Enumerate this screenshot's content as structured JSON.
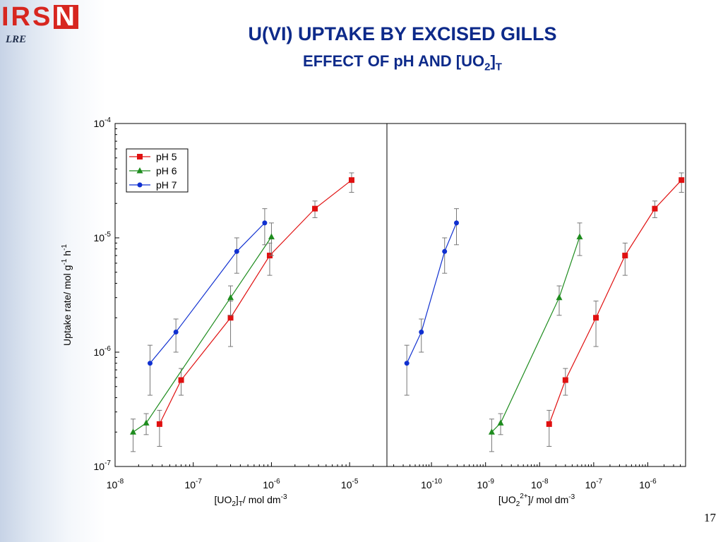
{
  "header": {
    "logo_text": "IRS",
    "logo_letter": "N",
    "sub_logo": "LRE",
    "title": "U(VI) UPTAKE BY EXCISED GILLS",
    "subtitle_main": "EFFECT OF pH AND [UO",
    "subtitle_sub1": "2",
    "subtitle_close": "]",
    "subtitle_sub2": "T"
  },
  "footer": {
    "page_number": "17"
  },
  "chart_data": [
    {
      "type": "scatter",
      "xscale": "log",
      "yscale": "log",
      "xlim": [
        1e-08,
        3e-05
      ],
      "ylim": [
        1e-07,
        0.0001
      ],
      "x_ticks": [
        1e-08,
        1e-07,
        1e-06,
        1e-05
      ],
      "x_tick_labels": [
        {
          "base": "10",
          "exp": "-8"
        },
        {
          "base": "10",
          "exp": "-7"
        },
        {
          "base": "10",
          "exp": "-6"
        },
        {
          "base": "10",
          "exp": "-5"
        }
      ],
      "y_ticks": [
        1e-07,
        1e-06,
        1e-05,
        0.0001
      ],
      "y_tick_labels": [
        {
          "base": "10",
          "exp": "-7"
        },
        {
          "base": "10",
          "exp": "-6"
        },
        {
          "base": "10",
          "exp": "-5"
        },
        {
          "base": "10",
          "exp": "-4"
        }
      ],
      "xlabel": {
        "t1": "[UO",
        "s1": "2",
        "t2": "]",
        "s2": "T",
        "t3": "/ mol dm",
        "e1": "-3"
      },
      "ylabel": {
        "t1": "Uptake rate/ mol g",
        "e1": "-1",
        "t2": " h",
        "e2": "-1"
      },
      "legend": {
        "position": "top-left",
        "entries": [
          "pH 5",
          "pH 6",
          "pH 7"
        ]
      },
      "series": [
        {
          "name": "pH 5",
          "color": "#e01010",
          "marker": "square",
          "x": [
            3.7e-08,
            7e-08,
            3e-07,
            9.5e-07,
            3.6e-06,
            1.06e-05
          ],
          "y": [
            2.35e-07,
            5.7e-07,
            2e-06,
            7e-06,
            1.8e-05,
            3.2e-05
          ],
          "y_low": [
            1.5e-07,
            4.2e-07,
            1.12e-06,
            4.7e-06,
            1.5e-05,
            2.5e-05
          ],
          "y_high": [
            3.1e-07,
            7.2e-07,
            2.8e-06,
            9e-06,
            2.1e-05,
            3.7e-05
          ]
        },
        {
          "name": "pH 6",
          "color": "#1e8c1e",
          "marker": "triangle",
          "x": [
            1.7e-08,
            2.5e-08,
            3e-07,
            1e-06
          ],
          "y": [
            2e-07,
            2.4e-07,
            3e-06,
            1.02e-05
          ],
          "y_low": [
            1.35e-07,
            1.9e-07,
            2.1e-06,
            7e-06
          ],
          "y_high": [
            2.6e-07,
            2.9e-07,
            3.8e-06,
            1.35e-05
          ],
          "error_bars": [
            true,
            true,
            true,
            true
          ]
        },
        {
          "name": "pH 7",
          "color": "#1030d0",
          "marker": "circle",
          "x": [
            2.8e-08,
            6e-08,
            3.6e-07,
            8.2e-07
          ],
          "y": [
            8e-07,
            1.5e-06,
            7.6e-06,
            1.35e-05
          ],
          "y_low": [
            4.2e-07,
            1e-06,
            4.9e-06,
            8.7e-06
          ],
          "y_high": [
            1.15e-06,
            1.95e-06,
            1e-05,
            1.8e-05
          ],
          "error_bars": [
            true,
            true,
            true,
            true
          ]
        }
      ]
    },
    {
      "type": "scatter",
      "xscale": "log",
      "yscale": "log",
      "xlim": [
        1.5e-11,
        5e-06
      ],
      "ylim": [
        1e-07,
        0.0001
      ],
      "x_ticks": [
        1e-10,
        1e-09,
        1e-08,
        1e-07,
        1e-06
      ],
      "x_tick_labels": [
        {
          "base": "10",
          "exp": "-10"
        },
        {
          "base": "10",
          "exp": "-9"
        },
        {
          "base": "10",
          "exp": "-8"
        },
        {
          "base": "10",
          "exp": "-7"
        },
        {
          "base": "10",
          "exp": "-6"
        }
      ],
      "xlabel": {
        "t1": "[UO",
        "s1": "2",
        "e1": "2+",
        "t2": "]/ mol dm",
        "e2": "-3"
      },
      "series": [
        {
          "name": "pH 5",
          "color": "#e01010",
          "marker": "square",
          "x": [
            1.5e-08,
            3e-08,
            1.1e-07,
            3.8e-07,
            1.35e-06,
            4.2e-06
          ],
          "y": [
            2.35e-07,
            5.7e-07,
            2e-06,
            7e-06,
            1.8e-05,
            3.2e-05
          ],
          "y_low": [
            1.5e-07,
            4.2e-07,
            1.12e-06,
            4.7e-06,
            1.5e-05,
            2.5e-05
          ],
          "y_high": [
            3.1e-07,
            7.2e-07,
            2.8e-06,
            9e-06,
            2.1e-05,
            3.7e-05
          ]
        },
        {
          "name": "pH 6",
          "color": "#1e8c1e",
          "marker": "triangle",
          "x": [
            1.3e-09,
            1.9e-09,
            2.3e-08,
            5.5e-08
          ],
          "y": [
            2e-07,
            2.4e-07,
            3e-06,
            1.02e-05
          ],
          "y_low": [
            1.35e-07,
            1.9e-07,
            2.1e-06,
            7e-06
          ],
          "y_high": [
            2.6e-07,
            2.9e-07,
            3.8e-06,
            1.35e-05
          ]
        },
        {
          "name": "pH 7",
          "color": "#1030d0",
          "marker": "circle",
          "x": [
            3.5e-11,
            6.5e-11,
            1.75e-10,
            2.9e-10
          ],
          "y": [
            8e-07,
            1.5e-06,
            7.6e-06,
            1.35e-05
          ],
          "y_low": [
            4.2e-07,
            1e-06,
            4.9e-06,
            8.7e-06
          ],
          "y_high": [
            1.15e-06,
            1.95e-06,
            1e-05,
            1.8e-05
          ]
        }
      ]
    }
  ]
}
